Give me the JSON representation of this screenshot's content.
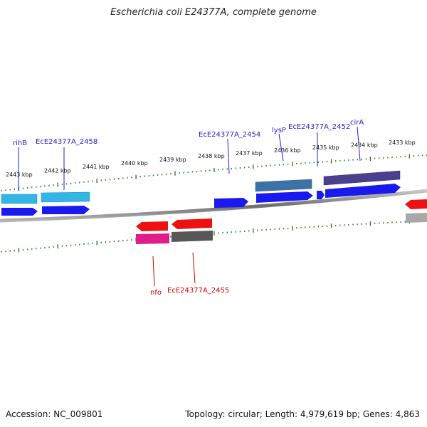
{
  "title": "Escherichia coli E24377A, complete genome",
  "footer": {
    "accession": "Accession: NC_009801",
    "summary": "Topology: circular; Length: 4,979,619 bp; Genes: 4,863"
  },
  "colors": {
    "forward_label": "#1f1fd0",
    "reverse_label": "#cc0000",
    "tick": "#2a7a2a",
    "backbone": "#808080"
  },
  "scale_labels": [
    "2443 kbp",
    "2442 kbp",
    "2441 kbp",
    "2440 kbp",
    "2439 kbp",
    "2438 kbp",
    "2437 kbp",
    "2436 kbp",
    "2435 kbp",
    "2434 kbp",
    "2433 kbp"
  ],
  "gene_labels_top": [
    "rihB",
    "EcE24377A_2458",
    "EcE24377A_2454",
    "lysP",
    "EcE24377A_2452",
    "cirA"
  ],
  "gene_labels_bottom": [
    "nfo",
    "EcE24377A_2455"
  ]
}
